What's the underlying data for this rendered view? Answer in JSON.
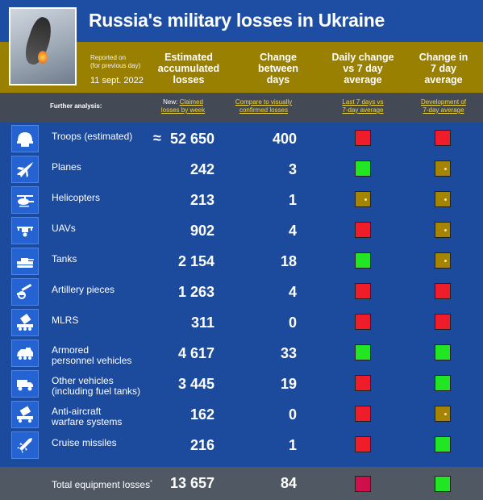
{
  "title": "Russia's military losses in Ukraine",
  "reported_on": "Reported on",
  "for_previous_day": "(for previous day)",
  "date": "11 sept. 2022",
  "columns": {
    "estimated": [
      "Estimated",
      "accumulated",
      "losses"
    ],
    "change": [
      "Change",
      "between",
      "days"
    ],
    "daily": [
      "Daily change",
      "vs 7 day",
      "average"
    ],
    "change7": [
      "Change in",
      "7 day",
      "average"
    ]
  },
  "further_analysis": "Further analysis:",
  "links": {
    "new_prefix": "New:",
    "claimed1": "Claimed",
    "claimed2": "losses by week",
    "compare1": "Compare to visually",
    "compare2": "confirmed losses",
    "last1": "Last 7 days vs",
    "last2": "7-day average",
    "dev1": "Development of",
    "dev2": "7-day average"
  },
  "rows": [
    {
      "label": "Troops (estimated)",
      "value": "52 650",
      "approx": "≈",
      "change": "400",
      "daily": "red",
      "change7": "red",
      "icon": "helmet-icon"
    },
    {
      "label": "Planes",
      "value": "242",
      "change": "3",
      "daily": "green",
      "change7": "olive",
      "icon": "plane-icon"
    },
    {
      "label": "Helicopters",
      "value": "213",
      "change": "1",
      "daily": "olive",
      "change7": "olive",
      "icon": "helicopter-icon"
    },
    {
      "label": "UAVs",
      "value": "902",
      "change": "4",
      "daily": "red",
      "change7": "olive",
      "icon": "drone-icon"
    },
    {
      "label": "Tanks",
      "value": "2 154",
      "change": "18",
      "daily": "green",
      "change7": "olive",
      "icon": "tank-icon"
    },
    {
      "label": "Artillery pieces",
      "value": "1 263",
      "change": "4",
      "daily": "red",
      "change7": "red",
      "icon": "artillery-icon"
    },
    {
      "label": "MLRS",
      "value": "311",
      "change": "0",
      "daily": "red",
      "change7": "red",
      "icon": "mlrs-icon"
    },
    {
      "label": "Armored",
      "label2": "personnel vehicles",
      "value": "4 617",
      "change": "33",
      "daily": "green",
      "change7": "green",
      "icon": "apc-icon"
    },
    {
      "label": "Other vehicles",
      "label2": "(including fuel tanks)",
      "value": "3 445",
      "change": "19",
      "daily": "red",
      "change7": "green",
      "icon": "truck-icon"
    },
    {
      "label": "Anti-aircraft",
      "label2": "warfare systems",
      "value": "162",
      "change": "0",
      "daily": "red",
      "change7": "olive",
      "icon": "anti-aircraft-icon"
    },
    {
      "label": "Cruise missiles",
      "value": "216",
      "change": "1",
      "daily": "red",
      "change7": "green",
      "icon": "missile-icon"
    }
  ],
  "total": {
    "label": "Total equipment losses",
    "mark": "*",
    "value": "13 657",
    "change": "84",
    "daily": "crimson",
    "change7": "green"
  },
  "colors": {
    "red": "#ef1c2a",
    "green": "#22e524",
    "olive": "#a48400",
    "crimson": "#cf0f4c"
  }
}
